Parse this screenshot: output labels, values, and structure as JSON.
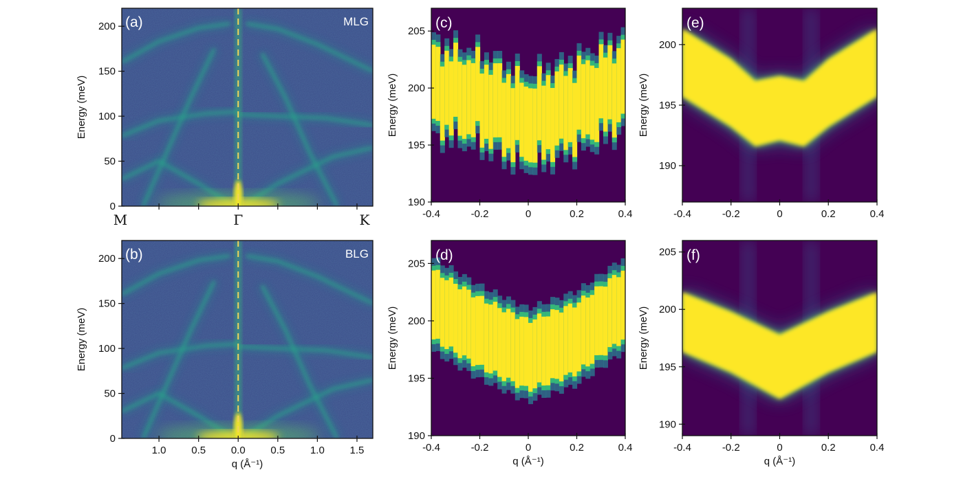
{
  "chart_data": [
    {
      "type": "heatmap",
      "panel": "(a)",
      "sample": "MLG",
      "ylabel": "Energy (meV)",
      "ylim": [
        0,
        220
      ],
      "yticks": [
        0,
        50,
        100,
        150,
        200
      ],
      "x_symbol_labels": [
        "M",
        "Γ",
        "K"
      ],
      "xlim": [
        -1.47,
        1.7
      ],
      "reference_line": "dashed vertical line at q = 0 (Γ)",
      "colormap": "viridis",
      "features": [
        {
          "name": "branch",
          "points": [
            [
              -1.47,
              160
            ],
            [
              -1.0,
              183
            ],
            [
              -0.5,
              198
            ],
            [
              -0.1,
              203
            ]
          ]
        },
        {
          "name": "branch",
          "points": [
            [
              0.1,
              203
            ],
            [
              0.5,
              197
            ],
            [
              1.0,
              180
            ],
            [
              1.7,
              150
            ]
          ]
        },
        {
          "name": "branch",
          "points": [
            [
              -1.47,
              78
            ],
            [
              -1.0,
              95
            ],
            [
              -0.4,
              103
            ],
            [
              0,
              105
            ]
          ]
        },
        {
          "name": "branch",
          "points": [
            [
              0,
              102
            ],
            [
              0.5,
              100
            ],
            [
              1.1,
              98
            ],
            [
              1.7,
              90
            ]
          ]
        },
        {
          "name": "branch",
          "points": [
            [
              -1.47,
              30
            ],
            [
              -1.0,
              50
            ],
            [
              -0.5,
              25
            ],
            [
              -0.1,
              3
            ]
          ]
        },
        {
          "name": "branch",
          "points": [
            [
              0.1,
              3
            ],
            [
              0.5,
              25
            ],
            [
              1.2,
              55
            ],
            [
              1.7,
              65
            ]
          ]
        },
        {
          "name": "branch",
          "points": [
            [
              -1.2,
              0
            ],
            [
              -0.9,
              60
            ],
            [
              -0.6,
              120
            ],
            [
              -0.3,
              175
            ]
          ]
        },
        {
          "name": "branch",
          "points": [
            [
              1.25,
              0
            ],
            [
              0.9,
              60
            ],
            [
              0.6,
              120
            ],
            [
              0.3,
              170
            ]
          ]
        }
      ]
    },
    {
      "type": "heatmap",
      "panel": "(b)",
      "sample": "BLG",
      "xlabel": "q (Å⁻¹)",
      "ylabel": "Energy (meV)",
      "ylim": [
        0,
        220
      ],
      "yticks": [
        0,
        50,
        100,
        150,
        200
      ],
      "xlim": [
        -1.47,
        1.7
      ],
      "xtick_values": [
        -1.0,
        -0.5,
        0.0,
        0.5,
        1.0,
        1.5
      ],
      "xtick_labels": [
        "1.0",
        "0.5",
        "0.0",
        "0.5",
        "1.0",
        "1.5"
      ],
      "reference_line": "dashed vertical line at q = 0",
      "colormap": "viridis"
    },
    {
      "type": "heatmap",
      "panel": "(c)",
      "ylabel": "Energy (meV)",
      "ylim": [
        190,
        207
      ],
      "yticks": [
        190,
        195,
        200,
        205
      ],
      "xlim": [
        -0.4,
        0.4
      ],
      "xticks": [
        -0.4,
        -0.2,
        0.0,
        0.2,
        0.4
      ],
      "colormap": "viridis",
      "band_center": [
        {
          "q": -0.4,
          "E": 200.0
        },
        {
          "q": -0.2,
          "E": 199.0
        },
        {
          "q": 0.0,
          "E": 197.0
        },
        {
          "q": 0.2,
          "E": 198.5
        },
        {
          "q": 0.4,
          "E": 200.5
        }
      ],
      "band_width_meV": 6.5
    },
    {
      "type": "heatmap",
      "panel": "(d)",
      "xlabel": "q (Å⁻¹)",
      "ylabel": "Energy (meV)",
      "ylim": [
        190,
        207
      ],
      "yticks": [
        190,
        195,
        200,
        205
      ],
      "xlim": [
        -0.4,
        0.4
      ],
      "xticks": [
        -0.4,
        -0.2,
        0.0,
        0.2,
        0.4
      ],
      "colormap": "viridis",
      "band_center": [
        {
          "q": -0.4,
          "E": 201.5
        },
        {
          "q": -0.2,
          "E": 199.0
        },
        {
          "q": 0.0,
          "E": 197.0
        },
        {
          "q": 0.2,
          "E": 198.5
        },
        {
          "q": 0.4,
          "E": 201.5
        }
      ],
      "band_width_meV": 6.0
    },
    {
      "type": "heatmap",
      "panel": "(e)",
      "ylabel": "Energy (meV)",
      "ylim": [
        187,
        203
      ],
      "yticks": [
        190,
        195,
        200
      ],
      "xlim": [
        -0.4,
        0.4
      ],
      "xticks": [
        -0.4,
        -0.2,
        0.0,
        0.2,
        0.4
      ],
      "colormap": "viridis",
      "band_upper_edge": [
        {
          "q": -0.4,
          "E": 201.3
        },
        {
          "q": -0.2,
          "E": 198.8
        },
        {
          "q": -0.1,
          "E": 197.0
        },
        {
          "q": 0.0,
          "E": 197.4
        },
        {
          "q": 0.1,
          "E": 197.0
        },
        {
          "q": 0.2,
          "E": 198.8
        },
        {
          "q": 0.4,
          "E": 201.3
        }
      ],
      "band_lower_edge": [
        {
          "q": -0.4,
          "E": 195.7
        },
        {
          "q": -0.2,
          "E": 193.2
        },
        {
          "q": -0.1,
          "E": 191.6
        },
        {
          "q": 0.0,
          "E": 192.1
        },
        {
          "q": 0.1,
          "E": 191.6
        },
        {
          "q": 0.2,
          "E": 193.2
        },
        {
          "q": 0.4,
          "E": 195.7
        }
      ]
    },
    {
      "type": "heatmap",
      "panel": "(f)",
      "xlabel": "q (Å⁻¹)",
      "ylabel": "Energy (meV)",
      "ylim": [
        189,
        206
      ],
      "yticks": [
        190,
        195,
        200,
        205
      ],
      "xlim": [
        -0.4,
        0.4
      ],
      "xticks": [
        -0.4,
        -0.2,
        0.0,
        0.2,
        0.4
      ],
      "colormap": "viridis",
      "band_upper_edge": [
        {
          "q": -0.4,
          "E": 201.5
        },
        {
          "q": -0.2,
          "E": 199.8
        },
        {
          "q": 0.0,
          "E": 197.8
        },
        {
          "q": 0.2,
          "E": 199.8
        },
        {
          "q": 0.4,
          "E": 201.5
        }
      ],
      "band_lower_edge": [
        {
          "q": -0.4,
          "E": 196.3
        },
        {
          "q": -0.2,
          "E": 194.5
        },
        {
          "q": 0.0,
          "E": 192.2
        },
        {
          "q": 0.2,
          "E": 194.5
        },
        {
          "q": 0.4,
          "E": 196.3
        }
      ]
    }
  ]
}
